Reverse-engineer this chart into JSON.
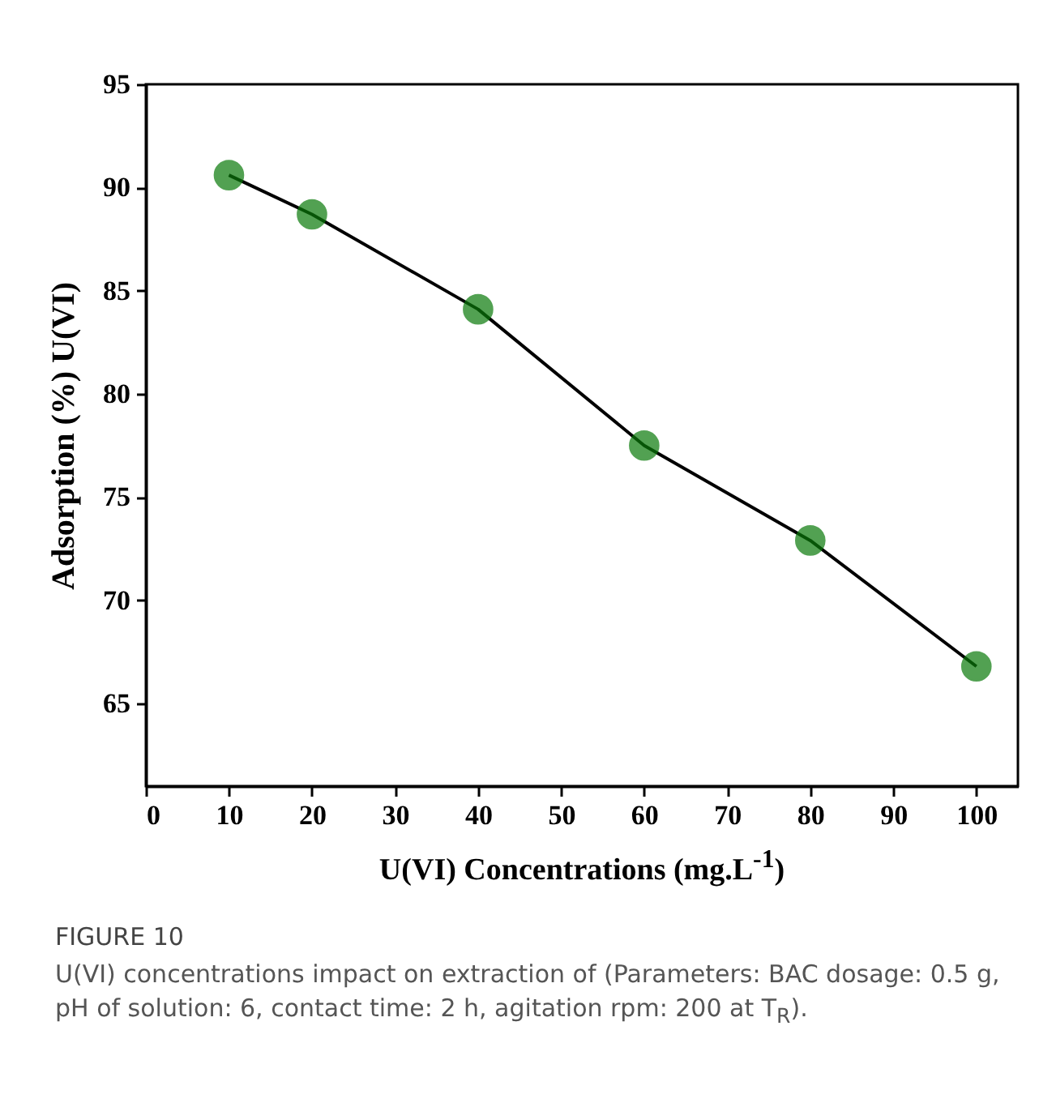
{
  "chart_data": {
    "type": "line",
    "xlabel": "U(VI) Concentrations (mg.L$^{-1}$)",
    "ylabel": "Adsorption (%) U(VI)",
    "x": [
      10,
      20,
      40,
      60,
      80,
      100
    ],
    "series": [
      {
        "color": "#0a7a0a",
        "values": [
          90.6,
          88.7,
          84.1,
          77.5,
          72.9,
          66.8
        ]
      }
    ],
    "xlim": [
      0,
      105
    ],
    "xticks": [
      0,
      10,
      20,
      30,
      40,
      50,
      60,
      70,
      80,
      90,
      100
    ],
    "ylim": [
      61,
      95
    ],
    "yticks": [
      65,
      70,
      75,
      80,
      85,
      90,
      95
    ],
    "grid": false,
    "marker": "circle",
    "line_style": "solid",
    "annotations": [
      "FIGURE 10",
      "U(VI) concentrations impact on extraction of (Parameters: BAC dosage: 0.5 g, pH of solution: 6, contact time: 2 h, agitation rpm: 200 at T$_{R}$)."
    ]
  }
}
